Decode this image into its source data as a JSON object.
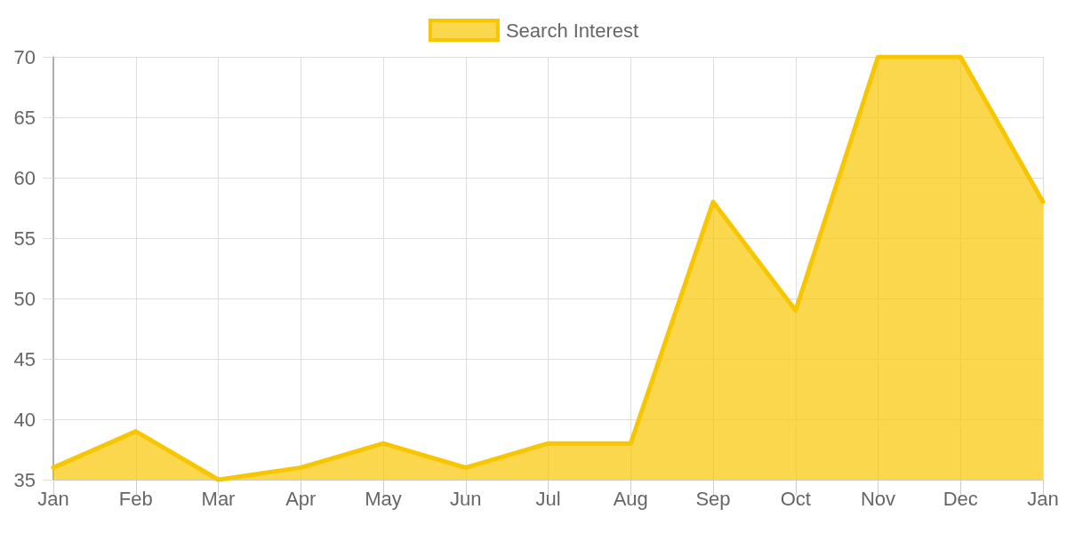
{
  "chart_data": {
    "type": "area",
    "categories": [
      "Jan",
      "Feb",
      "Mar",
      "Apr",
      "May",
      "Jun",
      "Jul",
      "Aug",
      "Sep",
      "Oct",
      "Nov",
      "Dec",
      "Jan"
    ],
    "series": [
      {
        "name": "Search Interest",
        "color": "#f8c600",
        "values": [
          36,
          39,
          35,
          36,
          38,
          36,
          38,
          38,
          58,
          49,
          70,
          70,
          58
        ]
      }
    ],
    "ylim": [
      35,
      70
    ],
    "yticks": [
      35,
      40,
      45,
      50,
      55,
      60,
      65,
      70
    ],
    "grid": true,
    "legend": "top",
    "marker": "none"
  }
}
